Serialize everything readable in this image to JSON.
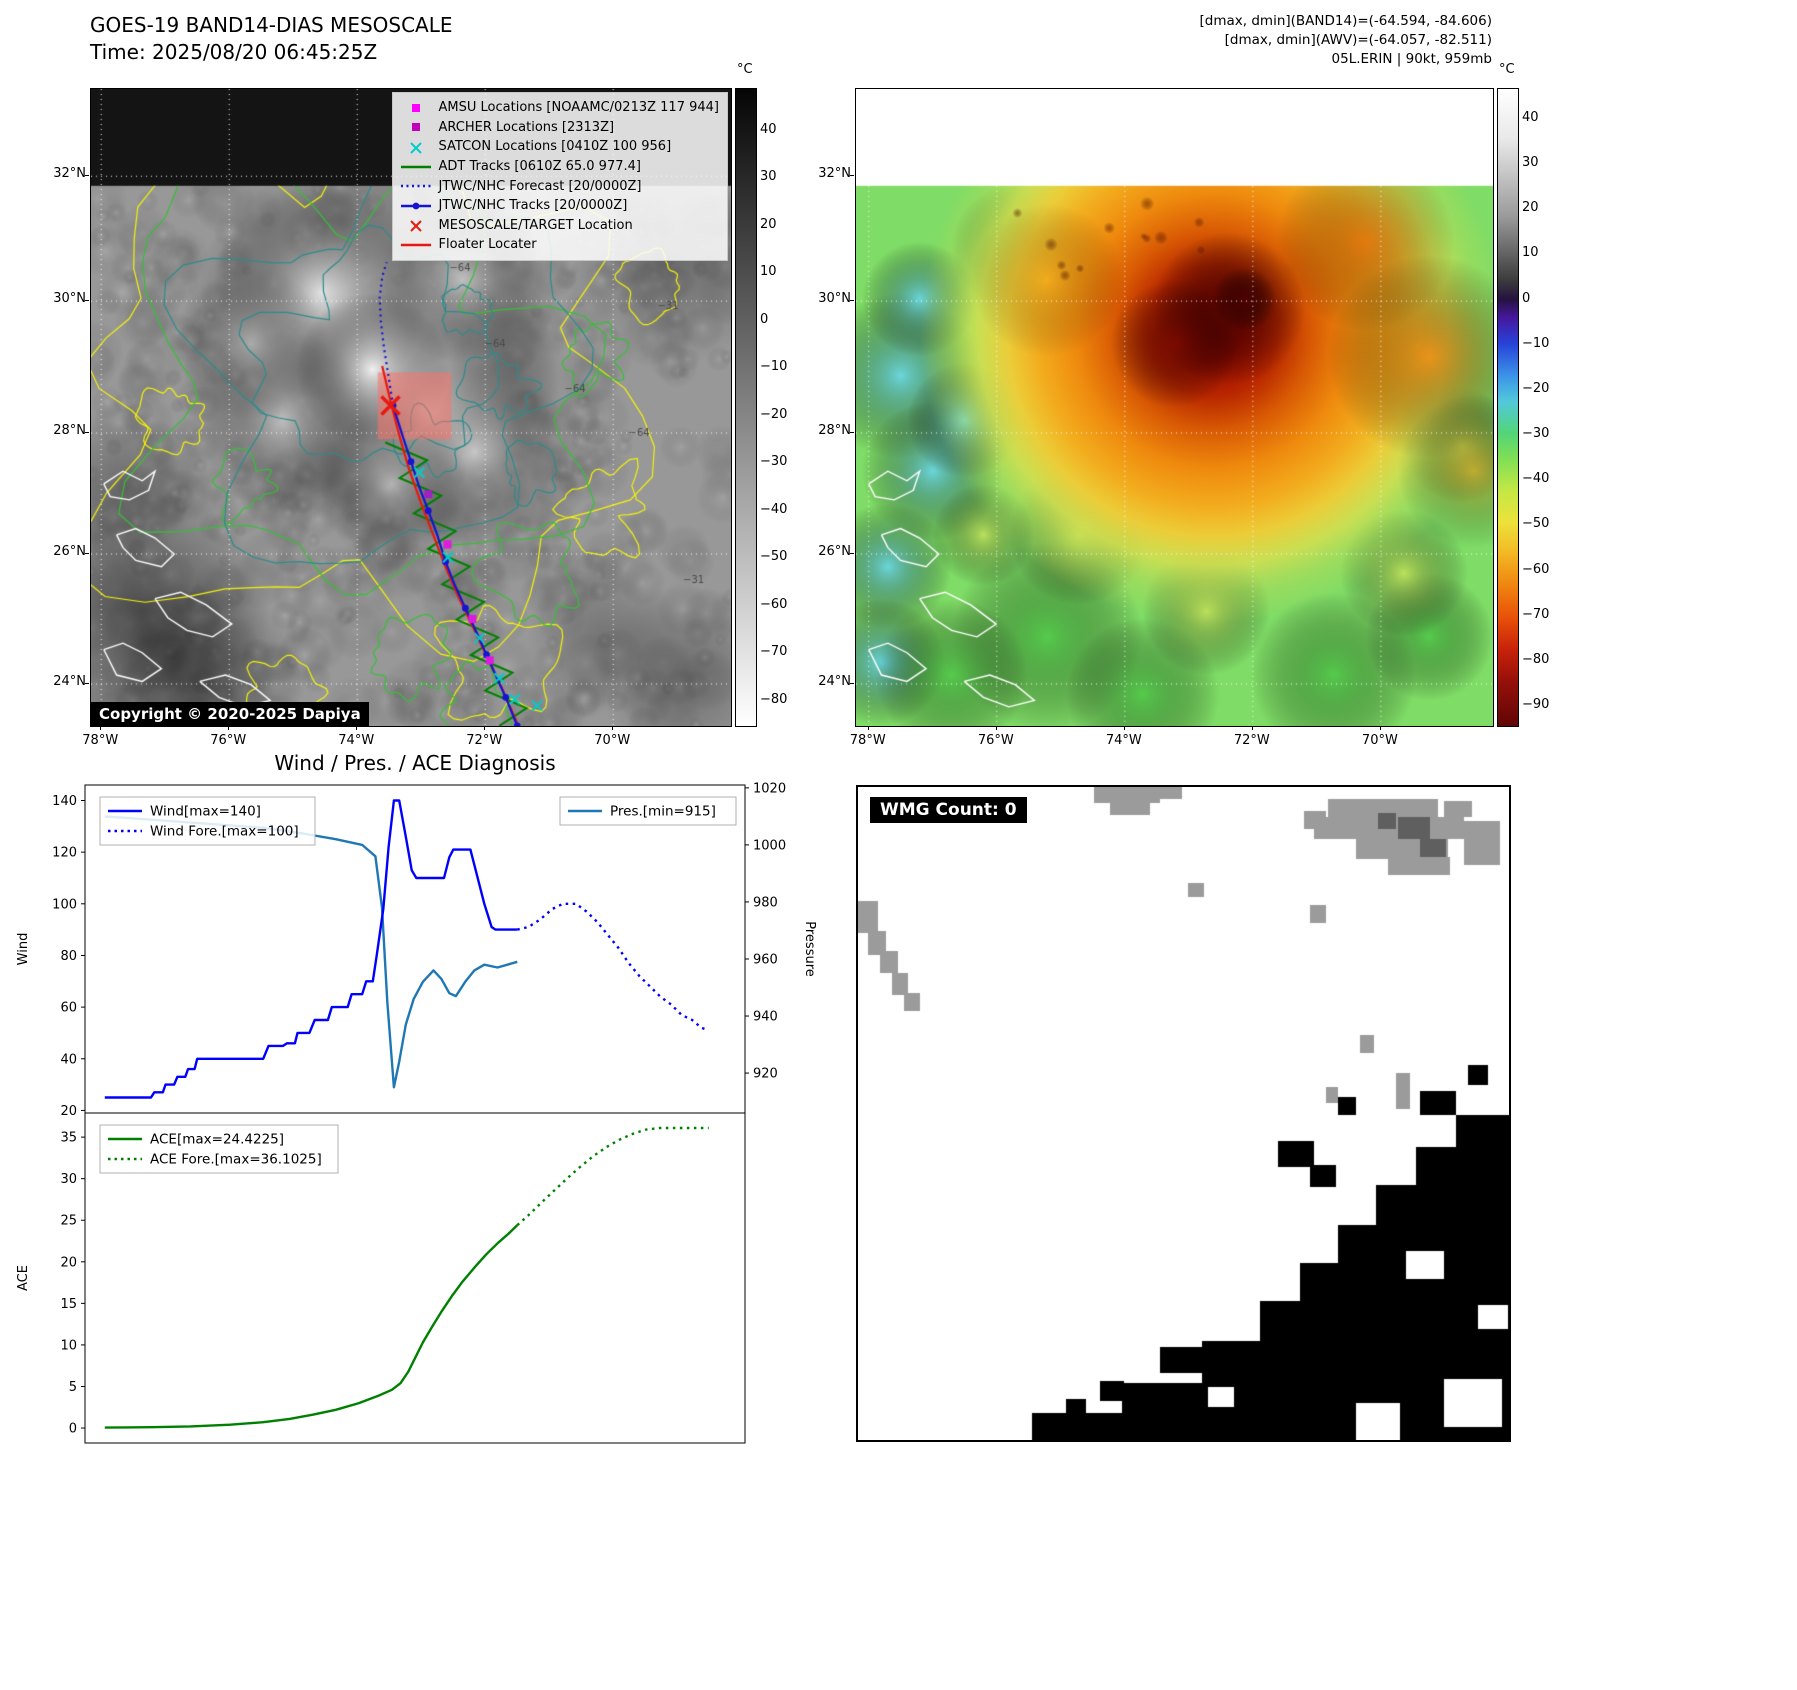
{
  "panel_tl": {
    "title_line1": "GOES-19 BAND14-DIAS MESOSCALE",
    "title_line2": "Time: 2025/08/20 06:45:25Z",
    "copyright": "Copyright © 2020-2025 Dapiya",
    "lat_ticks": [
      "32°N",
      "30°N",
      "28°N",
      "26°N",
      "24°N"
    ],
    "lon_ticks": [
      "78°W",
      "76°W",
      "74°W",
      "72°W",
      "70°W"
    ],
    "colorbar": {
      "unit": "°C",
      "ticks": [
        "40",
        "30",
        "20",
        "10",
        "0",
        "−10",
        "−20",
        "−30",
        "−40",
        "−50",
        "−60",
        "−70",
        "−80"
      ]
    },
    "legend": [
      {
        "label": "AMSU Locations [NOAAMC/0213Z 117 944]",
        "marker": "square",
        "color": "#ff00ff"
      },
      {
        "label": "ARCHER Locations [2313Z]",
        "marker": "square",
        "color": "#bf00bf"
      },
      {
        "label": "SATCON Locations [0410Z 100 956]",
        "marker": "x",
        "color": "#00cccc"
      },
      {
        "label": "ADT Tracks [0610Z 65.0 977.4]",
        "marker": "line",
        "color": "#008000"
      },
      {
        "label": "JTWC/NHC Forecast [20/0000Z]",
        "marker": "dotted-line",
        "color": "#1414d2"
      },
      {
        "label": "JTWC/NHC Tracks [20/0000Z]",
        "marker": "line-dot",
        "color": "#1414d2"
      },
      {
        "label": "MESOSCALE/TARGET Location",
        "marker": "x",
        "color": "#e8190f"
      },
      {
        "label": "Floater Locater",
        "marker": "line",
        "color": "#e8190f"
      }
    ],
    "contour_labels": [
      {
        "text": "−64",
        "fx": 0.56,
        "fy": 0.285
      },
      {
        "text": "−64",
        "fx": 0.615,
        "fy": 0.405
      },
      {
        "text": "−31",
        "fx": 0.885,
        "fy": 0.345
      },
      {
        "text": "−64",
        "fx": 0.74,
        "fy": 0.475
      },
      {
        "text": "−64",
        "fx": 0.84,
        "fy": 0.545
      },
      {
        "text": "−31",
        "fx": 0.925,
        "fy": 0.775
      }
    ]
  },
  "panel_tr": {
    "header_lines": [
      "[dmax, dmin](BAND14)=(-64.594, -84.606)",
      "[dmax, dmin](AWV)=(-64.057, -82.511)",
      "05L.ERIN | 90kt, 959mb"
    ],
    "lat_ticks": [
      "32°N",
      "30°N",
      "28°N",
      "26°N",
      "24°N"
    ],
    "lon_ticks": [
      "78°W",
      "76°W",
      "74°W",
      "72°W",
      "70°W"
    ],
    "colorbar": {
      "unit": "°C",
      "ticks": [
        "40",
        "30",
        "20",
        "10",
        "0",
        "−10",
        "−20",
        "−30",
        "−40",
        "−50",
        "−60",
        "−70",
        "−80",
        "−90"
      ]
    }
  },
  "panel_bl": {
    "title": "Wind / Pres. / ACE Diagnosis",
    "ylabel_left": "Wind",
    "ylabel_right": "Pressure",
    "ylabel_ace": "ACE"
  },
  "panel_br": {
    "wmg_label": "WMG Count: 0"
  },
  "chart_data": [
    {
      "type": "line",
      "title": "Wind / Pres. / ACE Diagnosis",
      "xlabel": "",
      "ylabel": "Wind",
      "y2label": "Pressure",
      "ylim": [
        19,
        146
      ],
      "y2lim": [
        906,
        1021
      ],
      "yticks": [
        20,
        40,
        60,
        80,
        100,
        120,
        140
      ],
      "y2ticks": [
        920,
        940,
        960,
        980,
        1000,
        1020
      ],
      "x_range": [
        0,
        1
      ],
      "grid": false,
      "series": [
        {
          "name": "Wind[max=140]",
          "color": "#0000ff",
          "style": "solid",
          "axis": "left",
          "points": [
            [
              0.03,
              25
            ],
            [
              0.1,
              25
            ],
            [
              0.105,
              27
            ],
            [
              0.118,
              27
            ],
            [
              0.122,
              30
            ],
            [
              0.135,
              30
            ],
            [
              0.14,
              33
            ],
            [
              0.152,
              33
            ],
            [
              0.156,
              36
            ],
            [
              0.166,
              36
            ],
            [
              0.17,
              40
            ],
            [
              0.27,
              40
            ],
            [
              0.278,
              45
            ],
            [
              0.3,
              45
            ],
            [
              0.306,
              46
            ],
            [
              0.318,
              46
            ],
            [
              0.322,
              50
            ],
            [
              0.34,
              50
            ],
            [
              0.348,
              55
            ],
            [
              0.368,
              55
            ],
            [
              0.374,
              60
            ],
            [
              0.398,
              60
            ],
            [
              0.404,
              65
            ],
            [
              0.42,
              65
            ],
            [
              0.426,
              70
            ],
            [
              0.436,
              70
            ],
            [
              0.442,
              80
            ],
            [
              0.452,
              98
            ],
            [
              0.46,
              122
            ],
            [
              0.468,
              140
            ],
            [
              0.476,
              140
            ],
            [
              0.486,
              126
            ],
            [
              0.495,
              113
            ],
            [
              0.502,
              110
            ],
            [
              0.544,
              110
            ],
            [
              0.552,
              118
            ],
            [
              0.558,
              121
            ],
            [
              0.584,
              121
            ],
            [
              0.592,
              113
            ],
            [
              0.605,
              100
            ],
            [
              0.616,
              91
            ],
            [
              0.622,
              90
            ],
            [
              0.655,
              90
            ]
          ]
        },
        {
          "name": "Wind Fore.[max=100]",
          "color": "#0000ff",
          "style": "dotted",
          "axis": "left",
          "points": [
            [
              0.655,
              90
            ],
            [
              0.672,
              91
            ],
            [
              0.69,
              94
            ],
            [
              0.708,
              98
            ],
            [
              0.724,
              100
            ],
            [
              0.744,
              100
            ],
            [
              0.76,
              97
            ],
            [
              0.776,
              93
            ],
            [
              0.792,
              88
            ],
            [
              0.808,
              83
            ],
            [
              0.824,
              77
            ],
            [
              0.84,
              72
            ],
            [
              0.856,
              68
            ],
            [
              0.872,
              64
            ],
            [
              0.888,
              61
            ],
            [
              0.904,
              57
            ],
            [
              0.92,
              55
            ],
            [
              0.934,
              52
            ],
            [
              0.945,
              51
            ]
          ]
        },
        {
          "name": "Pres.[min=915]",
          "color": "#1f77b4",
          "style": "solid",
          "axis": "right",
          "points": [
            [
              0.03,
              1010
            ],
            [
              0.09,
              1009
            ],
            [
              0.15,
              1008
            ],
            [
              0.21,
              1007
            ],
            [
              0.27,
              1006
            ],
            [
              0.33,
              1004
            ],
            [
              0.38,
              1002
            ],
            [
              0.42,
              1000
            ],
            [
              0.44,
              996
            ],
            [
              0.45,
              978
            ],
            [
              0.458,
              945
            ],
            [
              0.468,
              915
            ],
            [
              0.476,
              924
            ],
            [
              0.486,
              937
            ],
            [
              0.498,
              946
            ],
            [
              0.512,
              952
            ],
            [
              0.528,
              956
            ],
            [
              0.54,
              953
            ],
            [
              0.552,
              948
            ],
            [
              0.562,
              947
            ],
            [
              0.576,
              952
            ],
            [
              0.59,
              956
            ],
            [
              0.605,
              958
            ],
            [
              0.625,
              957
            ],
            [
              0.64,
              958
            ],
            [
              0.655,
              959
            ]
          ]
        }
      ]
    },
    {
      "type": "line",
      "title": "",
      "xlabel": "",
      "ylabel": "ACE",
      "ylim": [
        -1.8,
        37.9
      ],
      "yticks": [
        0,
        5,
        10,
        15,
        20,
        25,
        30,
        35
      ],
      "x_range": [
        0,
        1
      ],
      "grid": false,
      "series": [
        {
          "name": "ACE[max=24.4225]",
          "color": "#008000",
          "style": "solid",
          "axis": "left",
          "points": [
            [
              0.03,
              0.05
            ],
            [
              0.1,
              0.1
            ],
            [
              0.16,
              0.2
            ],
            [
              0.22,
              0.4
            ],
            [
              0.27,
              0.7
            ],
            [
              0.31,
              1.1
            ],
            [
              0.345,
              1.6
            ],
            [
              0.38,
              2.2
            ],
            [
              0.415,
              3.0
            ],
            [
              0.445,
              3.9
            ],
            [
              0.465,
              4.6
            ],
            [
              0.478,
              5.4
            ],
            [
              0.49,
              6.8
            ],
            [
              0.5,
              8.4
            ],
            [
              0.512,
              10.3
            ],
            [
              0.526,
              12.2
            ],
            [
              0.54,
              14.0
            ],
            [
              0.556,
              15.9
            ],
            [
              0.572,
              17.6
            ],
            [
              0.59,
              19.3
            ],
            [
              0.608,
              20.9
            ],
            [
              0.626,
              22.3
            ],
            [
              0.642,
              23.4
            ],
            [
              0.655,
              24.42
            ]
          ]
        },
        {
          "name": "ACE Fore.[max=36.1025]",
          "color": "#008000",
          "style": "dotted",
          "axis": "left",
          "points": [
            [
              0.655,
              24.42
            ],
            [
              0.672,
              25.6
            ],
            [
              0.69,
              27.0
            ],
            [
              0.71,
              28.5
            ],
            [
              0.73,
              30.0
            ],
            [
              0.75,
              31.4
            ],
            [
              0.77,
              32.7
            ],
            [
              0.79,
              33.8
            ],
            [
              0.81,
              34.7
            ],
            [
              0.83,
              35.4
            ],
            [
              0.85,
              35.9
            ],
            [
              0.87,
              36.1
            ],
            [
              0.9,
              36.1
            ],
            [
              0.945,
              36.1
            ]
          ]
        }
      ]
    }
  ]
}
